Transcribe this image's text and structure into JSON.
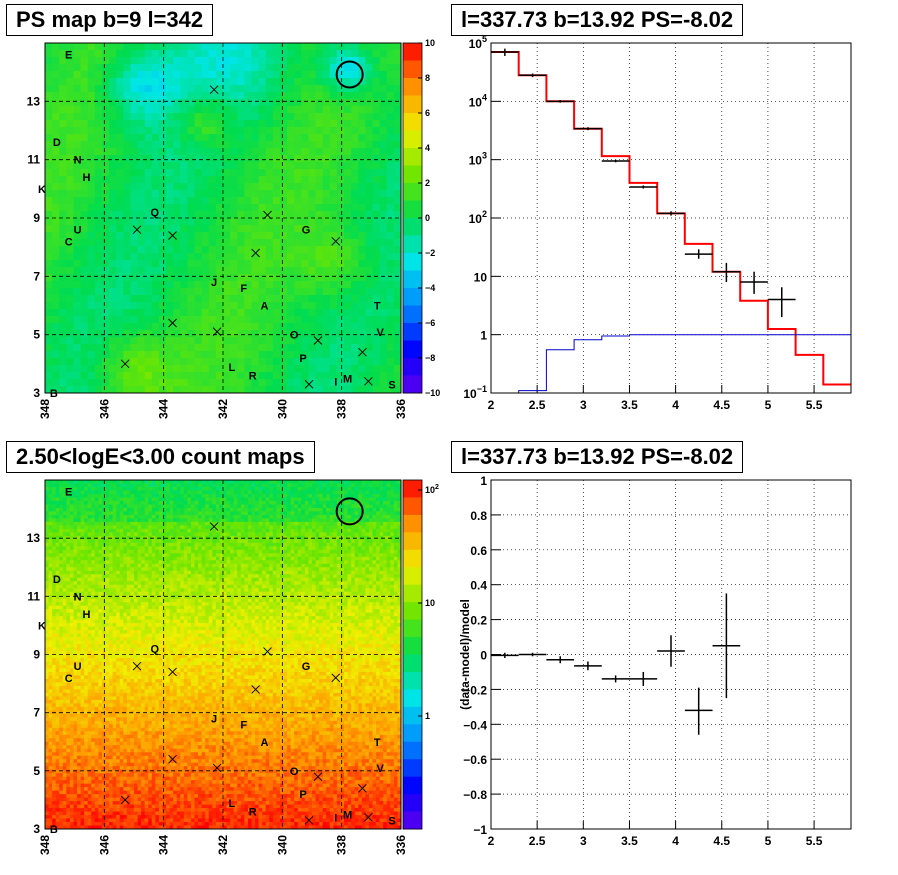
{
  "titles": {
    "tl": "PS map b=9 l=342",
    "tr": "l=337.73 b=13.92 PS=-8.02",
    "bl": "2.50<logE<3.00 count maps",
    "br": "l=337.73 b=13.92 PS=-8.02"
  },
  "chart_data": [
    {
      "type": "heatmap",
      "title": "PS map b=9 l=342",
      "x_ticks": [
        "348",
        "346",
        "344",
        "342",
        "340",
        "338",
        "336"
      ],
      "y_ticks": [
        "3",
        "5",
        "7",
        "9",
        "11",
        "13"
      ],
      "xlim": [
        348,
        336
      ],
      "ylim": [
        3,
        15
      ],
      "colorbar": {
        "min": -10,
        "max": 10,
        "ticks": [
          "10",
          "8",
          "6",
          "4",
          "2",
          "0",
          "−2",
          "−4",
          "−6",
          "−8",
          "−10"
        ]
      },
      "grid": true,
      "source_labels": [
        {
          "label": "E",
          "l": 347.2,
          "b": 14.6
        },
        {
          "label": "D",
          "l": 347.6,
          "b": 11.6
        },
        {
          "label": "N",
          "l": 346.9,
          "b": 11.0
        },
        {
          "label": "H",
          "l": 346.6,
          "b": 10.4
        },
        {
          "label": "K",
          "l": 348.1,
          "b": 10.0
        },
        {
          "label": "Q",
          "l": 344.3,
          "b": 9.2
        },
        {
          "label": "U",
          "l": 346.9,
          "b": 8.6
        },
        {
          "label": "C",
          "l": 347.2,
          "b": 8.2
        },
        {
          "label": "G",
          "l": 339.2,
          "b": 8.6
        },
        {
          "label": "J",
          "l": 342.3,
          "b": 6.8
        },
        {
          "label": "F",
          "l": 341.3,
          "b": 6.6
        },
        {
          "label": "A",
          "l": 340.6,
          "b": 6.0
        },
        {
          "label": "T",
          "l": 336.8,
          "b": 6.0
        },
        {
          "label": "O",
          "l": 339.6,
          "b": 5.0
        },
        {
          "label": "V",
          "l": 336.7,
          "b": 5.1
        },
        {
          "label": "P",
          "l": 339.3,
          "b": 4.2
        },
        {
          "label": "L",
          "l": 341.7,
          "b": 3.9
        },
        {
          "label": "R",
          "l": 341.0,
          "b": 3.6
        },
        {
          "label": "M",
          "l": 337.8,
          "b": 3.5
        },
        {
          "label": "I",
          "l": 338.2,
          "b": 3.4
        },
        {
          "label": "S",
          "l": 336.3,
          "b": 3.3
        },
        {
          "label": "B",
          "l": 347.7,
          "b": 3.0
        }
      ],
      "crosses": [
        [
          342.3,
          13.4
        ],
        [
          344.9,
          8.6
        ],
        [
          343.7,
          8.4
        ],
        [
          340.5,
          9.1
        ],
        [
          338.2,
          8.2
        ],
        [
          340.9,
          7.8
        ],
        [
          343.7,
          5.4
        ],
        [
          342.2,
          5.1
        ],
        [
          338.8,
          4.8
        ],
        [
          337.3,
          4.4
        ],
        [
          339.1,
          3.3
        ],
        [
          337.1,
          3.4
        ],
        [
          345.3,
          4.0
        ]
      ],
      "circle": {
        "l": 337.73,
        "b": 13.92
      }
    },
    {
      "type": "line",
      "title": "l=337.73 b=13.92 PS=-8.02",
      "yscale": "log",
      "xlim": [
        2,
        5.9
      ],
      "ylim": [
        0.1,
        100000
      ],
      "x_ticks": [
        "2",
        "2.5",
        "3",
        "3.5",
        "4",
        "4.5",
        "5",
        "5.5"
      ],
      "y_ticks": [
        "10^-1",
        "1",
        "10",
        "10^2",
        "10^3",
        "10^4",
        "10^5"
      ],
      "grid": true,
      "series": [
        {
          "color": "#ff0000",
          "style": "step",
          "edges": [
            2,
            2.3,
            2.6,
            2.9,
            3.2,
            3.5,
            3.8,
            4.1,
            4.4,
            4.7,
            5.0,
            5.3,
            5.6,
            5.9
          ],
          "values": [
            70000,
            28000,
            10000,
            3400,
            1150,
            400,
            120,
            36,
            12,
            3.8,
            1.25,
            0.45,
            0.14
          ]
        },
        {
          "color": "#0000cc",
          "style": "step",
          "edges": [
            2,
            2.3,
            2.6,
            2.9,
            3.2,
            3.5,
            3.8,
            4.1,
            4.4,
            4.7,
            5.0,
            5.3,
            5.6,
            5.9
          ],
          "values": [
            0.1,
            0.11,
            0.55,
            0.82,
            0.95,
            1.0,
            1.0,
            1.0,
            1.0,
            1.0,
            1.0,
            1.0,
            1.0
          ]
        },
        {
          "color": "#000000",
          "style": "errorbar",
          "x": [
            2.15,
            2.45,
            2.75,
            3.05,
            3.35,
            3.65,
            3.95,
            4.25,
            4.55,
            4.85,
            5.15
          ],
          "y": [
            70000,
            28000,
            10000,
            3400,
            950,
            340,
            120,
            24,
            12,
            8,
            4
          ],
          "xerr": 0.15,
          "yerr": [
            [
              60000,
              80000
            ],
            [
              26000,
              30000
            ],
            [
              9500,
              10500
            ],
            [
              3200,
              3600
            ],
            [
              900,
              1000
            ],
            [
              320,
              360
            ],
            [
              110,
              130
            ],
            [
              20,
              29
            ],
            [
              8,
              17
            ],
            [
              5,
              12
            ],
            [
              2,
              6.5
            ]
          ]
        }
      ]
    },
    {
      "type": "heatmap",
      "title": "2.50<logE<3.00 count maps",
      "x_ticks": [
        "348",
        "346",
        "344",
        "342",
        "340",
        "338",
        "336"
      ],
      "y_ticks": [
        "3",
        "5",
        "7",
        "9",
        "11",
        "13"
      ],
      "xlim": [
        348,
        336
      ],
      "ylim": [
        3,
        15
      ],
      "colorbar": {
        "scale": "log",
        "ticks": [
          "10^2",
          "10",
          "1"
        ]
      },
      "grid": true
    },
    {
      "type": "scatter",
      "title": "l=337.73 b=13.92 PS=-8.02",
      "ylabel": "(data-model)/model",
      "xlim": [
        2,
        5.9
      ],
      "ylim": [
        -1,
        1
      ],
      "x_ticks": [
        "2",
        "2.5",
        "3",
        "3.5",
        "4",
        "4.5",
        "5",
        "5.5"
      ],
      "y_ticks": [
        "1",
        "0.8",
        "0.6",
        "0.4",
        "0.2",
        "0",
        "−0.2",
        "−0.4",
        "−0.6",
        "−0.8",
        "−1"
      ],
      "grid": true,
      "points": [
        {
          "x": 2.15,
          "y": -0.005,
          "xerr": 0.15,
          "ylo": -0.02,
          "yhi": 0.01
        },
        {
          "x": 2.45,
          "y": 0.0,
          "xerr": 0.15,
          "ylo": -0.01,
          "yhi": 0.01
        },
        {
          "x": 2.75,
          "y": -0.03,
          "xerr": 0.15,
          "ylo": -0.05,
          "yhi": -0.01
        },
        {
          "x": 3.05,
          "y": -0.065,
          "xerr": 0.15,
          "ylo": -0.09,
          "yhi": -0.04
        },
        {
          "x": 3.35,
          "y": -0.14,
          "xerr": 0.15,
          "ylo": -0.16,
          "yhi": -0.12
        },
        {
          "x": 3.65,
          "y": -0.14,
          "xerr": 0.15,
          "ylo": -0.18,
          "yhi": -0.1
        },
        {
          "x": 3.95,
          "y": 0.02,
          "xerr": 0.15,
          "ylo": -0.07,
          "yhi": 0.11
        },
        {
          "x": 4.25,
          "y": -0.32,
          "xerr": 0.15,
          "ylo": -0.46,
          "yhi": -0.19
        },
        {
          "x": 4.55,
          "y": 0.05,
          "xerr": 0.15,
          "ylo": -0.25,
          "yhi": 0.35
        }
      ]
    }
  ]
}
